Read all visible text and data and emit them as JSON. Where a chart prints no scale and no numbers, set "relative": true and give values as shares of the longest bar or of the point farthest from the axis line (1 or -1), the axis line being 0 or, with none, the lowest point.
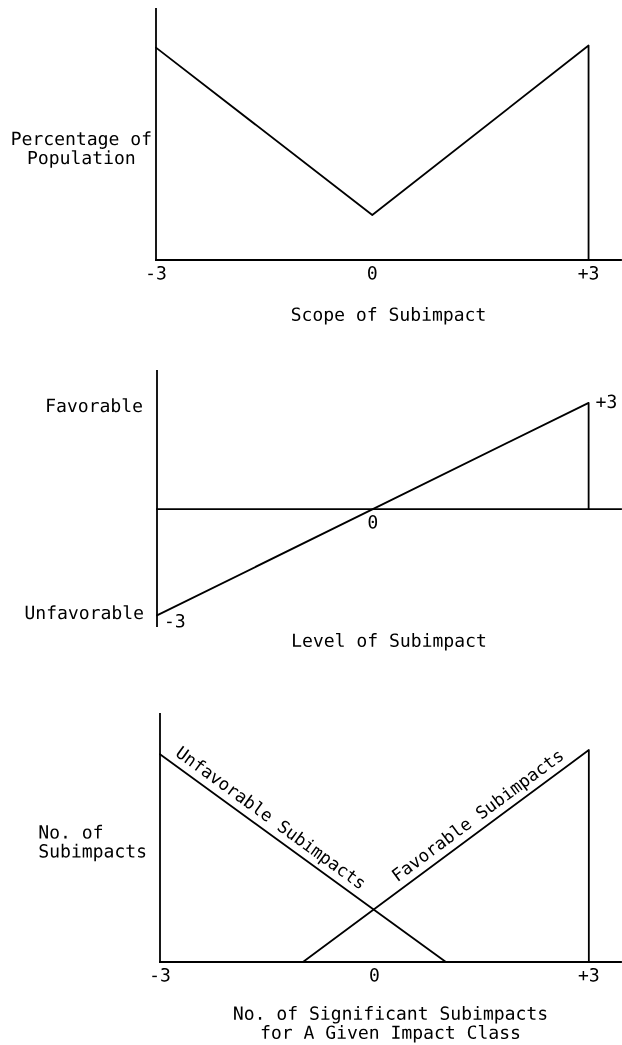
{
  "chart_data": [
    {
      "type": "line",
      "relative": true,
      "ylabel": "Percentage of\nPopulation",
      "xlabel": "Scope of Subimpact",
      "xlim": [
        -3,
        3.45
      ],
      "xticks": [
        -3,
        0,
        {
          "value": 3,
          "label": "+3"
        }
      ],
      "series": [
        {
          "color": "#000000",
          "x": [
            -3,
            0,
            3,
            3
          ],
          "values": [
            0.99,
            0.21,
            1,
            0
          ]
        }
      ]
    },
    {
      "type": "line",
      "xlabel": "Level of Subimpact",
      "xlim": [
        -3,
        3.45
      ],
      "ylim": [
        -3.3,
        3.9
      ],
      "series": [
        {
          "color": "#000000",
          "x": [
            -3,
            0,
            3,
            3
          ],
          "values": [
            -3,
            0,
            3,
            0
          ],
          "value_labels": [
            "-3",
            "0",
            "+3",
            null
          ]
        }
      ],
      "annotations": [
        "Favorable",
        "Unfavorable"
      ]
    },
    {
      "type": "line",
      "relative": true,
      "ylabel": "No. of\nSubimpacts",
      "xlabel": "No. of Significant Subimpacts\nfor A Given Impact Class",
      "xlim": [
        -3,
        3.45
      ],
      "xticks": [
        -3,
        0,
        {
          "value": 3,
          "label": "+3"
        }
      ],
      "series": [
        {
          "name": "Unfavorable Subimpacts",
          "color": "#000000",
          "x": [
            -3,
            1
          ],
          "values": [
            0.98,
            0
          ]
        },
        {
          "name": "Favorable Subimpacts",
          "color": "#000000",
          "x": [
            -1,
            3,
            3
          ],
          "values": [
            0,
            1,
            0
          ]
        }
      ]
    }
  ]
}
